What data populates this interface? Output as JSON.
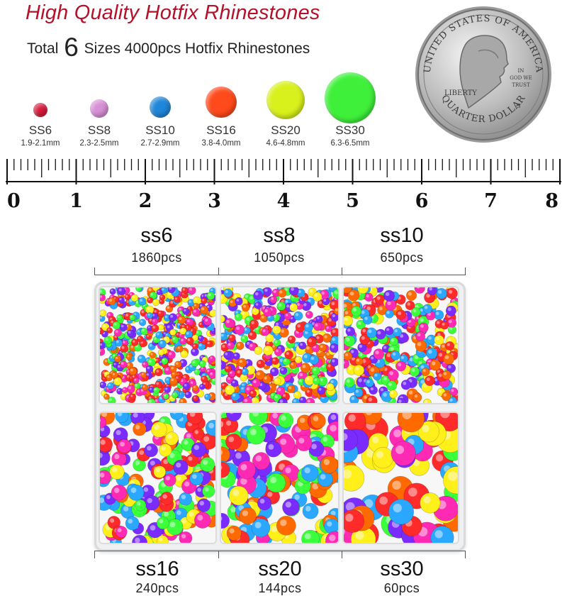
{
  "header": {
    "title": "High Quality Hotfix Rhinestones",
    "subtitle_prefix": "Total",
    "subtitle_number": "6",
    "subtitle_suffix": "Sizes 4000pcs Hotfix Rhinestones"
  },
  "gems": [
    {
      "label": "SS6",
      "range": "1.9-2.1mm",
      "color": "#d81b3c"
    },
    {
      "label": "SS8",
      "range": "2.3-2.5mm",
      "color": "#d98fd6"
    },
    {
      "label": "SS10",
      "range": "2.7-2.9mm",
      "color": "#1f86d9"
    },
    {
      "label": "SS16",
      "range": "3.8-4.0mm",
      "color": "#ff4a1c"
    },
    {
      "label": "SS20",
      "range": "4.6-4.8mm",
      "color": "#d8f01c"
    },
    {
      "label": "SS30",
      "range": "6.3-6.5mm",
      "color": "#3ff03a"
    }
  ],
  "coin": {
    "top_text": "UNITED STATES OF AMERICA",
    "bottom_text": "QUARTER DOLLAR",
    "liberty": "LIBERTY",
    "motto_1": "IN",
    "motto_2": "GOD WE",
    "motto_3": "TRUST",
    "mint": "S"
  },
  "ruler": {
    "labels": [
      "0",
      "1",
      "2",
      "3",
      "4",
      "5",
      "6",
      "7",
      "8"
    ]
  },
  "tray": {
    "top": [
      {
        "name": "ss6",
        "count": "1860pcs"
      },
      {
        "name": "ss8",
        "count": "1050pcs"
      },
      {
        "name": "ss10",
        "count": "650pcs"
      }
    ],
    "bottom": [
      {
        "name": "ss16",
        "count": "240pcs"
      },
      {
        "name": "ss20",
        "count": "144pcs"
      },
      {
        "name": "ss30",
        "count": "60pcs"
      }
    ]
  },
  "colors": {
    "title": "#b3122a",
    "stones": [
      "#ff2a2a",
      "#ffef1a",
      "#2aa8ff",
      "#ff6a00",
      "#3cff3c",
      "#ff2ab4",
      "#7a2cff",
      "#ffffff"
    ]
  }
}
